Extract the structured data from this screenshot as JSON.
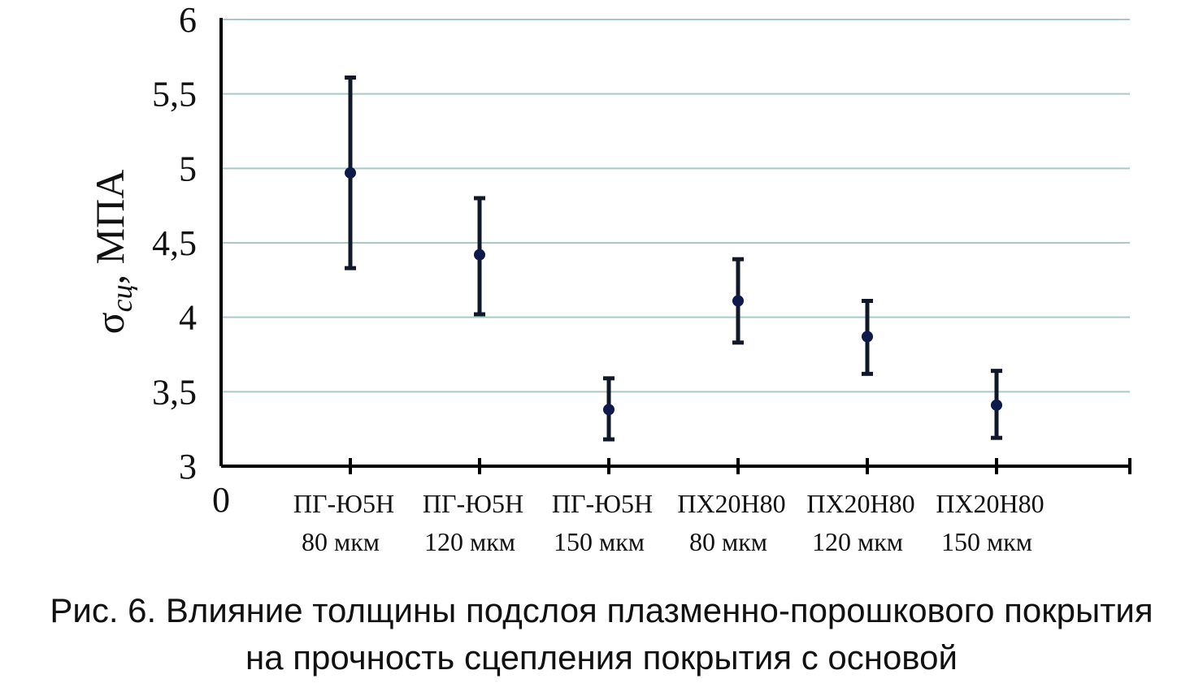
{
  "chart_data": {
    "type": "scatter",
    "error_bars": true,
    "ylabel": {
      "symbol": "σ",
      "subscript": "сц",
      "rest": ", МПА"
    },
    "ylim": [
      3,
      6
    ],
    "yticks": [
      "3",
      "3,5",
      "4",
      "4,5",
      "5",
      "5,5",
      "6"
    ],
    "ytick_values": [
      3,
      3.5,
      4,
      4.5,
      5,
      5.5,
      6
    ],
    "x_origin_label": "0",
    "grid": true,
    "categories": [
      {
        "line1": "ПГ-Ю5Н",
        "line2": "80 мкм"
      },
      {
        "line1": "ПГ-Ю5Н",
        "line2": "120 мкм"
      },
      {
        "line1": "ПГ-Ю5Н",
        "line2": "150 мкм"
      },
      {
        "line1": "ПХ20Н80",
        "line2": "80 мкм"
      },
      {
        "line1": "ПХ20Н80",
        "line2": "120 мкм"
      },
      {
        "line1": "ПХ20Н80",
        "line2": "150 мкм"
      }
    ],
    "values": [
      4.97,
      4.42,
      3.38,
      4.11,
      3.87,
      3.41
    ],
    "err_low": [
      4.33,
      4.02,
      3.18,
      3.83,
      3.62,
      3.19
    ],
    "err_high": [
      5.61,
      4.8,
      3.59,
      4.39,
      4.11,
      3.64
    ],
    "colors": {
      "marker": "#0d1a4a",
      "errorbar": "#111827",
      "grid": "#a9c9c9",
      "axis": "#000000"
    }
  },
  "caption": {
    "line1": "Рис. 6. Влияние толщины подслоя плазменно-порошкового покрытия",
    "line2": "на прочность сцепления покрытия с основой"
  }
}
